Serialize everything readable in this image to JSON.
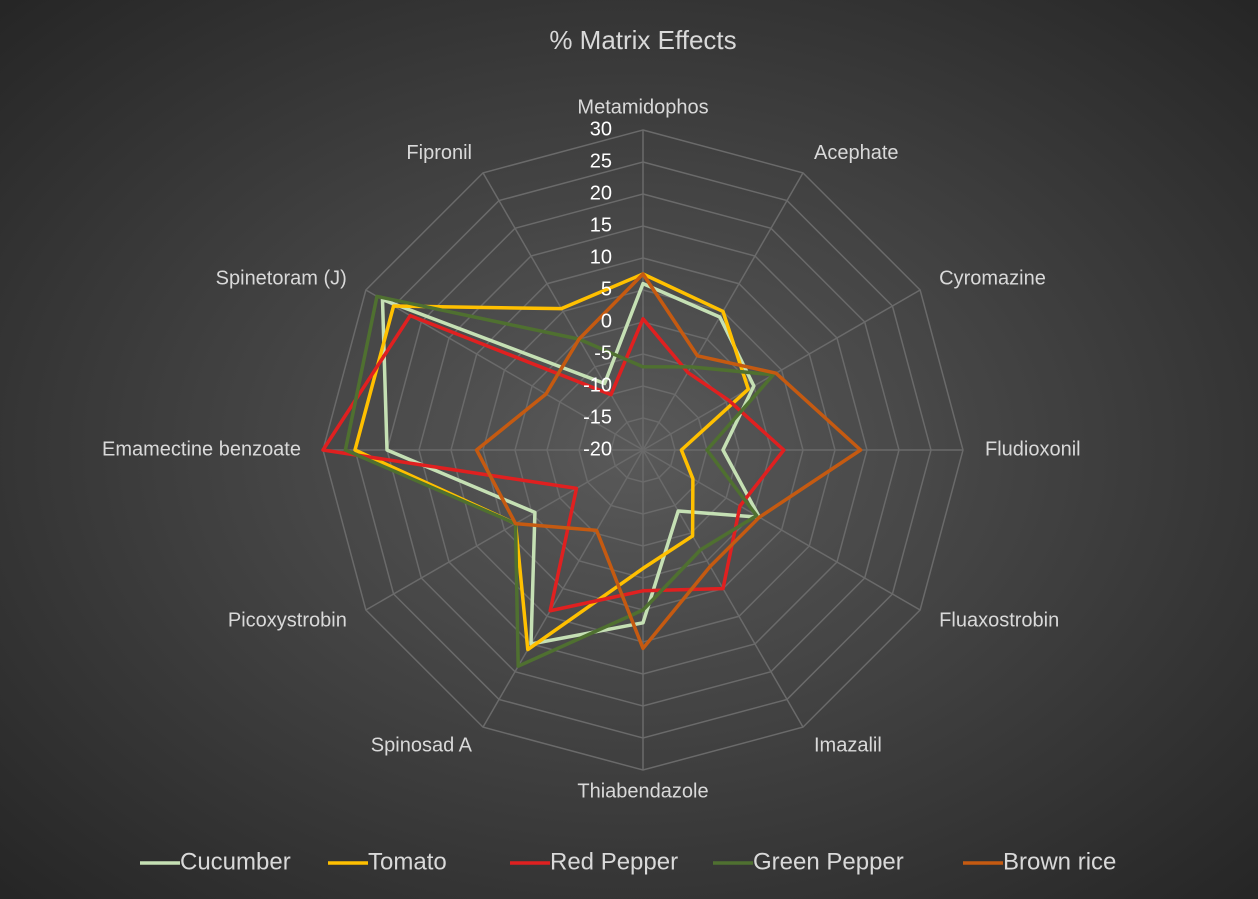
{
  "chart_data": {
    "type": "radar",
    "title": "% Matrix Effects",
    "categories": [
      "Metamidophos",
      "Acephate",
      "Cyromazine",
      "Fludioxonil",
      "Fluaxostrobin",
      "Imazalil",
      "Thiabendazole",
      "Spinosad A",
      "Picoxystrobin",
      "Emamectine benzoate",
      "Spinetoram (J)",
      "Fipronil"
    ],
    "ylim": [
      -20,
      30
    ],
    "yticks": [
      -20,
      -15,
      -10,
      -5,
      0,
      5,
      10,
      15,
      20,
      25,
      30
    ],
    "legend": "bottom",
    "series": [
      {
        "name": "Cucumber",
        "color": "#c5e0b4",
        "values": [
          6,
          4,
          0,
          -7.5,
          1,
          -9,
          7,
          15,
          -0.5,
          20,
          27,
          -8
        ]
      },
      {
        "name": "Tomato",
        "color": "#ffc000",
        "values": [
          7.5,
          5,
          -1,
          -14,
          -11,
          -4.5,
          -1.5,
          16,
          3,
          25,
          25,
          5.5
        ]
      },
      {
        "name": "Red Pepper",
        "color": "#e02020",
        "values": [
          0.5,
          -6,
          -4.5,
          2,
          -2.5,
          5,
          2,
          9,
          -8,
          30,
          22,
          -10
        ]
      },
      {
        "name": "Green Pepper",
        "color": "#4f7030",
        "values": [
          -7,
          -5,
          3.5,
          -10,
          0.5,
          -2,
          5,
          19,
          3,
          26.5,
          28,
          0
        ]
      },
      {
        "name": "Brown rice",
        "color": "#c55a11",
        "values": [
          7.5,
          -3,
          4,
          14,
          1,
          1,
          11,
          -5.5,
          3,
          6,
          -2.5,
          0
        ]
      }
    ]
  }
}
